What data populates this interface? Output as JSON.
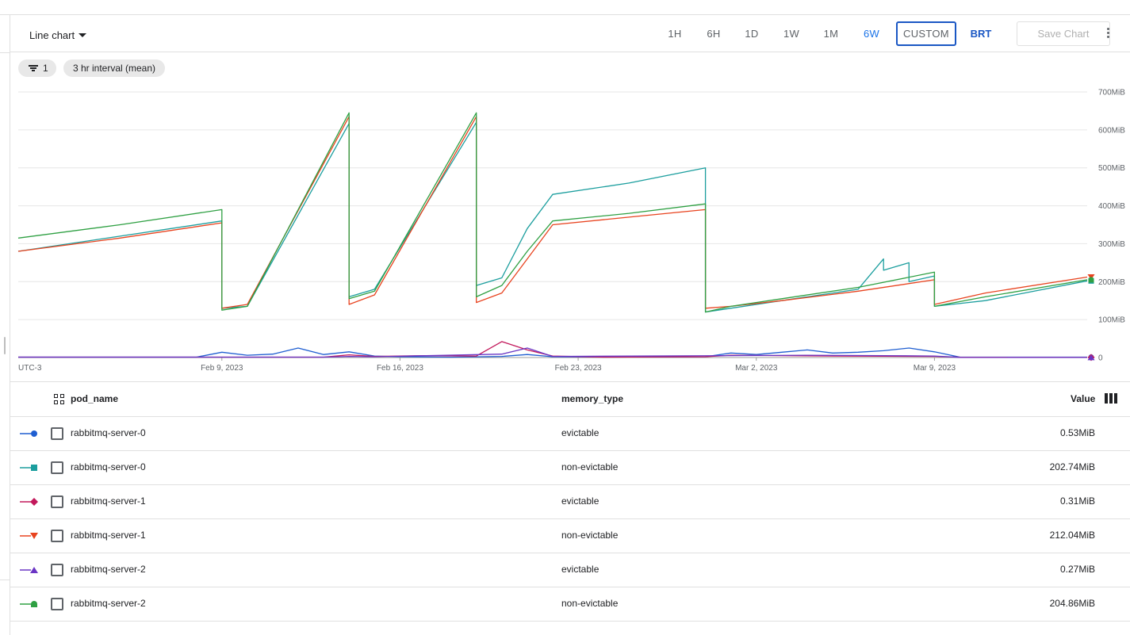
{
  "toolbar": {
    "chart_type_label": "Line chart",
    "time_ranges": [
      "1H",
      "6H",
      "1D",
      "1W",
      "1M",
      "6W"
    ],
    "active_range": "6W",
    "custom_label": "CUSTOM",
    "timezone_label": "BRT",
    "save_label": "Save Chart"
  },
  "chips": {
    "filter_count": "1",
    "interval_label": "3 hr interval (mean)"
  },
  "colors": {
    "accent": "#1a73e8",
    "series": [
      "#1f5ed1",
      "#1b9e9e",
      "#c2185b",
      "#e8431f",
      "#6a35c4",
      "#2fa043"
    ]
  },
  "chart_data": {
    "type": "line",
    "timezone": "UTC-3",
    "x_ticks": [
      "Feb 9, 2023",
      "Feb 16, 2023",
      "Feb 23, 2023",
      "Mar 2, 2023",
      "Mar 9, 2023"
    ],
    "y_ticks": [
      "700MiB",
      "600MiB",
      "500MiB",
      "400MiB",
      "300MiB",
      "200MiB",
      "100MiB",
      "0"
    ],
    "x_range": [
      "2023-02-01",
      "2023-03-15"
    ],
    "ylim": [
      0,
      700
    ],
    "y_unit": "MiB",
    "grid": true,
    "series": [
      {
        "pod_name": "rabbitmq-server-0",
        "memory_type": "evictable",
        "marker": "circle",
        "points": [
          [
            "2023-02-01",
            1
          ],
          [
            "2023-02-08",
            1
          ],
          [
            "2023-02-09",
            14
          ],
          [
            "2023-02-10",
            6
          ],
          [
            "2023-02-11",
            9
          ],
          [
            "2023-02-12",
            25
          ],
          [
            "2023-02-13",
            8
          ],
          [
            "2023-02-14",
            15
          ],
          [
            "2023-02-15",
            4
          ],
          [
            "2023-02-16",
            2
          ],
          [
            "2023-02-18",
            1
          ],
          [
            "2023-02-20",
            3
          ],
          [
            "2023-02-21",
            8
          ],
          [
            "2023-02-22",
            2
          ],
          [
            "2023-02-24",
            1
          ],
          [
            "2023-02-28",
            2
          ],
          [
            "2023-03-01",
            12
          ],
          [
            "2023-03-02",
            8
          ],
          [
            "2023-03-03",
            14
          ],
          [
            "2023-03-04",
            20
          ],
          [
            "2023-03-05",
            12
          ],
          [
            "2023-03-06",
            14
          ],
          [
            "2023-03-07",
            18
          ],
          [
            "2023-03-08",
            25
          ],
          [
            "2023-03-09",
            15
          ],
          [
            "2023-03-10",
            1
          ],
          [
            "2023-03-15",
            1
          ]
        ]
      },
      {
        "pod_name": "rabbitmq-server-0",
        "memory_type": "non-evictable",
        "marker": "square",
        "points": [
          [
            "2023-02-01",
            280
          ],
          [
            "2023-02-05",
            320
          ],
          [
            "2023-02-09",
            360
          ],
          [
            "2023-02-09",
            130
          ],
          [
            "2023-02-10",
            135
          ],
          [
            "2023-02-14",
            617
          ],
          [
            "2023-02-14",
            160
          ],
          [
            "2023-02-15",
            180
          ],
          [
            "2023-02-19",
            620
          ],
          [
            "2023-02-19",
            190
          ],
          [
            "2023-02-20",
            210
          ],
          [
            "2023-02-21",
            340
          ],
          [
            "2023-02-22",
            430
          ],
          [
            "2023-02-25",
            460
          ],
          [
            "2023-02-28",
            500
          ],
          [
            "2023-02-28",
            120
          ],
          [
            "2023-03-01",
            130
          ],
          [
            "2023-03-03",
            150
          ],
          [
            "2023-03-06",
            180
          ],
          [
            "2023-03-07",
            260
          ],
          [
            "2023-03-07",
            230
          ],
          [
            "2023-03-08",
            250
          ],
          [
            "2023-03-08",
            200
          ],
          [
            "2023-03-09",
            215
          ],
          [
            "2023-03-09",
            135
          ],
          [
            "2023-03-11",
            150
          ],
          [
            "2023-03-15",
            202
          ]
        ]
      },
      {
        "pod_name": "rabbitmq-server-1",
        "memory_type": "evictable",
        "marker": "diamond",
        "points": [
          [
            "2023-02-01",
            1
          ],
          [
            "2023-02-13",
            1
          ],
          [
            "2023-02-14",
            7
          ],
          [
            "2023-02-15",
            3
          ],
          [
            "2023-02-17",
            5
          ],
          [
            "2023-02-19",
            4
          ],
          [
            "2023-02-20",
            42
          ],
          [
            "2023-02-21",
            20
          ],
          [
            "2023-02-22",
            4
          ],
          [
            "2023-02-24",
            1
          ],
          [
            "2023-02-28",
            2
          ],
          [
            "2023-03-01",
            6
          ],
          [
            "2023-03-05",
            4
          ],
          [
            "2023-03-09",
            3
          ],
          [
            "2023-03-10",
            1
          ],
          [
            "2023-03-15",
            0.3
          ]
        ]
      },
      {
        "pod_name": "rabbitmq-server-1",
        "memory_type": "non-evictable",
        "marker": "triangle-down",
        "points": [
          [
            "2023-02-01",
            280
          ],
          [
            "2023-02-05",
            315
          ],
          [
            "2023-02-09",
            355
          ],
          [
            "2023-02-09",
            130
          ],
          [
            "2023-02-10",
            140
          ],
          [
            "2023-02-14",
            635
          ],
          [
            "2023-02-14",
            140
          ],
          [
            "2023-02-15",
            165
          ],
          [
            "2023-02-19",
            635
          ],
          [
            "2023-02-19",
            145
          ],
          [
            "2023-02-20",
            170
          ],
          [
            "2023-02-21",
            260
          ],
          [
            "2023-02-22",
            350
          ],
          [
            "2023-02-25",
            370
          ],
          [
            "2023-02-28",
            390
          ],
          [
            "2023-02-28",
            130
          ],
          [
            "2023-03-01",
            135
          ],
          [
            "2023-03-03",
            150
          ],
          [
            "2023-03-06",
            175
          ],
          [
            "2023-03-09",
            205
          ],
          [
            "2023-03-09",
            140
          ],
          [
            "2023-03-11",
            170
          ],
          [
            "2023-03-15",
            212
          ]
        ]
      },
      {
        "pod_name": "rabbitmq-server-2",
        "memory_type": "evictable",
        "marker": "triangle",
        "points": [
          [
            "2023-02-01",
            1
          ],
          [
            "2023-02-13",
            1
          ],
          [
            "2023-02-14",
            3
          ],
          [
            "2023-02-15",
            2
          ],
          [
            "2023-02-20",
            9
          ],
          [
            "2023-02-21",
            25
          ],
          [
            "2023-02-22",
            3
          ],
          [
            "2023-03-01",
            5
          ],
          [
            "2023-03-04",
            6
          ],
          [
            "2023-03-07",
            5
          ],
          [
            "2023-03-09",
            4
          ],
          [
            "2023-03-10",
            0.5
          ],
          [
            "2023-03-15",
            0.27
          ]
        ]
      },
      {
        "pod_name": "rabbitmq-server-2",
        "memory_type": "non-evictable",
        "marker": "half-circle",
        "points": [
          [
            "2023-02-01",
            315
          ],
          [
            "2023-02-05",
            350
          ],
          [
            "2023-02-09",
            390
          ],
          [
            "2023-02-09",
            125
          ],
          [
            "2023-02-10",
            135
          ],
          [
            "2023-02-14",
            645
          ],
          [
            "2023-02-14",
            155
          ],
          [
            "2023-02-15",
            175
          ],
          [
            "2023-02-19",
            645
          ],
          [
            "2023-02-19",
            160
          ],
          [
            "2023-02-20",
            190
          ],
          [
            "2023-02-21",
            280
          ],
          [
            "2023-02-22",
            360
          ],
          [
            "2023-02-25",
            380
          ],
          [
            "2023-02-28",
            405
          ],
          [
            "2023-02-28",
            120
          ],
          [
            "2023-03-01",
            135
          ],
          [
            "2023-03-03",
            155
          ],
          [
            "2023-03-06",
            185
          ],
          [
            "2023-03-09",
            225
          ],
          [
            "2023-03-09",
            135
          ],
          [
            "2023-03-11",
            160
          ],
          [
            "2023-03-15",
            205
          ]
        ]
      }
    ]
  },
  "table": {
    "headers": {
      "pod_name": "pod_name",
      "memory_type": "memory_type",
      "value": "Value"
    },
    "rows": [
      {
        "pod_name": "rabbitmq-server-0",
        "memory_type": "evictable",
        "value": "0.53MiB",
        "marker": "circle"
      },
      {
        "pod_name": "rabbitmq-server-0",
        "memory_type": "non-evictable",
        "value": "202.74MiB",
        "marker": "square"
      },
      {
        "pod_name": "rabbitmq-server-1",
        "memory_type": "evictable",
        "value": "0.31MiB",
        "marker": "diamond"
      },
      {
        "pod_name": "rabbitmq-server-1",
        "memory_type": "non-evictable",
        "value": "212.04MiB",
        "marker": "triangle-down"
      },
      {
        "pod_name": "rabbitmq-server-2",
        "memory_type": "evictable",
        "value": "0.27MiB",
        "marker": "triangle"
      },
      {
        "pod_name": "rabbitmq-server-2",
        "memory_type": "non-evictable",
        "value": "204.86MiB",
        "marker": "half-circle"
      }
    ]
  }
}
